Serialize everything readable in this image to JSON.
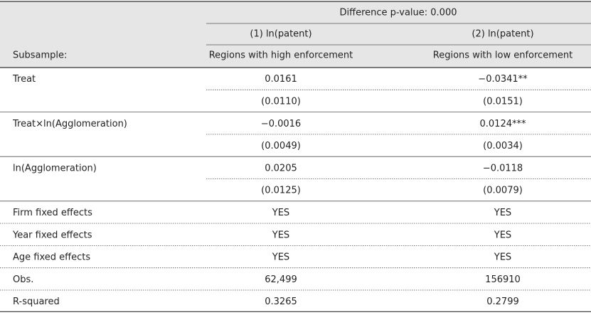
{
  "header": {
    "title": "Difference p-value: 0.000",
    "subsample_label": "Subsample:",
    "columns": [
      {
        "model": "(1) ln(patent)",
        "subsample": "Regions with high enforcement"
      },
      {
        "model": "(2) ln(patent)",
        "subsample": "Regions with low enforcement"
      }
    ]
  },
  "rows": [
    {
      "label": "Treat",
      "values": [
        "0.0161",
        "−0.0341**"
      ],
      "se": [
        "(0.0110)",
        "(0.0151)"
      ]
    },
    {
      "label": "Treat×ln(Agglomeration)",
      "values": [
        "−0.0016",
        "0.0124***"
      ],
      "se": [
        "(0.0049)",
        "(0.0034)"
      ]
    },
    {
      "label": "ln(Agglomeration)",
      "values": [
        "0.0205",
        "−0.0118"
      ],
      "se": [
        "(0.0125)",
        "(0.0079)"
      ]
    },
    {
      "label": "Firm fixed effects",
      "values": [
        "YES",
        "YES"
      ]
    },
    {
      "label": "Year fixed effects",
      "values": [
        "YES",
        "YES"
      ]
    },
    {
      "label": "Age fixed effects",
      "values": [
        "YES",
        "YES"
      ]
    },
    {
      "label": "Obs.",
      "values": [
        "62,499",
        "156910"
      ]
    },
    {
      "label": "R-squared",
      "values": [
        "0.3265",
        "0.2799"
      ]
    }
  ]
}
